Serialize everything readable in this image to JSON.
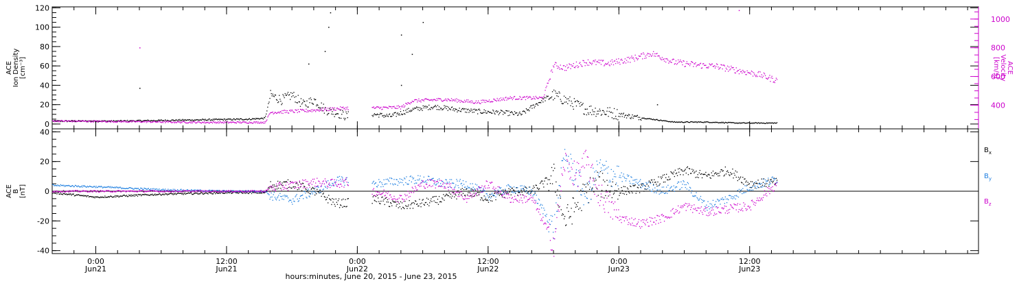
{
  "chart_data": {
    "type": "scatter",
    "xlabel": "hours:minutes, June 20, 2015 - June 23, 2015",
    "xlim": [
      "2015-06-20 20:00",
      "2015-06-24 09:00"
    ],
    "x_ticks": [
      {
        "time": "2015-06-21 00:00",
        "line1": "0:00",
        "line2": "Jun21"
      },
      {
        "time": "2015-06-21 12:00",
        "line1": "12:00",
        "line2": "Jun21"
      },
      {
        "time": "2015-06-22 00:00",
        "line1": "0:00",
        "line2": "Jun22"
      },
      {
        "time": "2015-06-22 12:00",
        "line1": "12:00",
        "line2": "Jun22"
      },
      {
        "time": "2015-06-23 00:00",
        "line1": "0:00",
        "line2": "Jun23"
      },
      {
        "time": "2015-06-23 12:00",
        "line1": "12:00",
        "line2": "Jun23"
      }
    ],
    "panels": [
      {
        "left_axis": {
          "label_lines": [
            "ACE",
            "Ion Density",
            "[cm⁻³]"
          ],
          "ylim": [
            -5,
            121
          ],
          "ticks": [
            0,
            20,
            40,
            60,
            80,
            100,
            120
          ],
          "tick_labels": [
            "0",
            "20",
            "40",
            "60",
            "80",
            "100",
            "120"
          ]
        },
        "right_axis": {
          "label_lines": [
            "ACE",
            "Velocity",
            "[km/s]"
          ],
          "ylim": [
            235,
            1085
          ],
          "ticks": [
            400,
            600,
            800,
            1000
          ],
          "tick_labels": [
            "400",
            "600",
            "800",
            "1000"
          ],
          "color": "#cc00cc"
        },
        "series": [
          {
            "color": "#000000",
            "axis": "left",
            "points": [
              [
                "2015-06-20 20:00",
                3
              ],
              [
                "2015-06-21 02:00",
                3
              ],
              [
                "2015-06-21 08:00",
                4
              ],
              [
                "2015-06-21 14:00",
                5
              ],
              [
                "2015-06-21 15:30",
                6
              ],
              [
                "2015-06-21 16:00",
                30
              ],
              [
                "2015-06-21 17:00",
                25
              ],
              [
                "2015-06-21 18:00",
                30
              ],
              [
                "2015-06-21 19:00",
                20
              ],
              [
                "2015-06-21 20:00",
                25
              ],
              [
                "2015-06-21 21:00",
                15
              ],
              [
                "2015-06-21 22:00",
                12
              ],
              [
                "2015-06-21 23:00",
                8
              ],
              [
                "2015-06-22 01:30",
                10
              ],
              [
                "2015-06-22 03:00",
                8
              ],
              [
                "2015-06-22 05:00",
                15
              ],
              [
                "2015-06-22 07:00",
                18
              ],
              [
                "2015-06-22 09:00",
                15
              ],
              [
                "2015-06-22 11:00",
                13
              ],
              [
                "2015-06-22 13:00",
                12
              ],
              [
                "2015-06-22 15:00",
                10
              ],
              [
                "2015-06-22 17:00",
                25
              ],
              [
                "2015-06-22 18:00",
                30
              ],
              [
                "2015-06-22 19:00",
                25
              ],
              [
                "2015-06-22 20:00",
                20
              ],
              [
                "2015-06-22 21:00",
                15
              ],
              [
                "2015-06-22 23:00",
                12
              ],
              [
                "2015-06-23 01:00",
                8
              ],
              [
                "2015-06-23 03:00",
                5
              ],
              [
                "2015-06-23 05:00",
                2
              ],
              [
                "2015-06-23 08:00",
                2
              ],
              [
                "2015-06-23 11:00",
                1
              ],
              [
                "2015-06-23 14:30",
                1
              ]
            ],
            "outliers": [
              [
                "2015-06-21 04:00",
                37
              ],
              [
                "2015-06-21 21:00",
                75
              ],
              [
                "2015-06-21 21:30",
                115
              ],
              [
                "2015-06-21 21:20",
                100
              ],
              [
                "2015-06-22 04:00",
                92
              ],
              [
                "2015-06-22 06:00",
                105
              ],
              [
                "2015-06-22 05:00",
                72
              ],
              [
                "2015-06-21 19:30",
                62
              ],
              [
                "2015-06-23 03:30",
                20
              ],
              [
                "2015-06-22 04:00",
                40
              ]
            ]
          },
          {
            "color": "#cc00cc",
            "axis": "right",
            "points": [
              [
                "2015-06-20 20:00",
                290
              ],
              [
                "2015-06-21 04:00",
                285
              ],
              [
                "2015-06-21 10:00",
                280
              ],
              [
                "2015-06-21 15:30",
                280
              ],
              [
                "2015-06-21 16:00",
                350
              ],
              [
                "2015-06-21 19:00",
                360
              ],
              [
                "2015-06-21 23:00",
                380
              ],
              [
                "2015-06-22 01:30",
                380
              ],
              [
                "2015-06-22 04:00",
                385
              ],
              [
                "2015-06-22 05:00",
                430
              ],
              [
                "2015-06-22 08:00",
                440
              ],
              [
                "2015-06-22 11:00",
                420
              ],
              [
                "2015-06-22 14:00",
                450
              ],
              [
                "2015-06-22 17:00",
                450
              ],
              [
                "2015-06-22 18:00",
                680
              ],
              [
                "2015-06-22 19:00",
                660
              ],
              [
                "2015-06-22 21:00",
                700
              ],
              [
                "2015-06-22 23:00",
                690
              ],
              [
                "2015-06-23 01:00",
                720
              ],
              [
                "2015-06-23 03:00",
                760
              ],
              [
                "2015-06-23 05:00",
                700
              ],
              [
                "2015-06-23 07:00",
                680
              ],
              [
                "2015-06-23 09:00",
                670
              ],
              [
                "2015-06-23 11:00",
                640
              ],
              [
                "2015-06-23 13:00",
                610
              ],
              [
                "2015-06-23 14:30",
                570
              ]
            ],
            "outliers": [
              [
                "2015-06-21 04:00",
                800
              ],
              [
                "2015-06-23 11:00",
                1060
              ]
            ]
          }
        ]
      },
      {
        "left_axis": {
          "label_lines": [
            "ACE",
            "B",
            "[nT]"
          ],
          "ylim": [
            -42,
            42
          ],
          "ticks": [
            -40,
            -20,
            0,
            20,
            40
          ],
          "tick_labels": [
            "-40",
            "-20",
            "0",
            "20",
            "40"
          ]
        },
        "zero_line": true,
        "series": [
          {
            "name": "Bx",
            "color": "#000000",
            "points": [
              [
                "2015-06-20 20:00",
                -1
              ],
              [
                "2015-06-21 00:00",
                -4
              ],
              [
                "2015-06-21 06:00",
                -2
              ],
              [
                "2015-06-21 12:00",
                -1
              ],
              [
                "2015-06-21 15:30",
                -1
              ],
              [
                "2015-06-21 16:00",
                4
              ],
              [
                "2015-06-21 18:00",
                5
              ],
              [
                "2015-06-21 20:00",
                0
              ],
              [
                "2015-06-21 22:00",
                -8
              ],
              [
                "2015-06-21 23:00",
                -8
              ],
              [
                "2015-06-22 01:30",
                -5
              ],
              [
                "2015-06-22 04:00",
                -10
              ],
              [
                "2015-06-22 06:00",
                -8
              ],
              [
                "2015-06-22 08:00",
                -5
              ],
              [
                "2015-06-22 10:00",
                0
              ],
              [
                "2015-06-22 12:00",
                -5
              ],
              [
                "2015-06-22 14:00",
                0
              ],
              [
                "2015-06-22 16:00",
                0
              ],
              [
                "2015-06-22 18:00",
                10
              ],
              [
                "2015-06-22 19:00",
                -20
              ],
              [
                "2015-06-22 20:00",
                -10
              ],
              [
                "2015-06-22 21:00",
                0
              ],
              [
                "2015-06-22 22:00",
                5
              ],
              [
                "2015-06-23 00:00",
                0
              ],
              [
                "2015-06-23 02:00",
                2
              ],
              [
                "2015-06-23 04:00",
                8
              ],
              [
                "2015-06-23 06:00",
                14
              ],
              [
                "2015-06-23 08:00",
                10
              ],
              [
                "2015-06-23 10:00",
                14
              ],
              [
                "2015-06-23 12:00",
                5
              ],
              [
                "2015-06-23 14:30",
                6
              ]
            ]
          },
          {
            "name": "By",
            "color": "#1f7fe0",
            "points": [
              [
                "2015-06-20 20:00",
                4
              ],
              [
                "2015-06-21 00:00",
                3
              ],
              [
                "2015-06-21 06:00",
                1
              ],
              [
                "2015-06-21 12:00",
                0
              ],
              [
                "2015-06-21 15:30",
                0
              ],
              [
                "2015-06-21 16:00",
                -3
              ],
              [
                "2015-06-21 18:00",
                -6
              ],
              [
                "2015-06-21 20:00",
                0
              ],
              [
                "2015-06-21 22:00",
                7
              ],
              [
                "2015-06-21 23:00",
                7
              ],
              [
                "2015-06-22 01:30",
                5
              ],
              [
                "2015-06-22 04:00",
                7
              ],
              [
                "2015-06-22 06:00",
                8
              ],
              [
                "2015-06-22 08:00",
                5
              ],
              [
                "2015-06-22 10:00",
                5
              ],
              [
                "2015-06-22 12:00",
                -3
              ],
              [
                "2015-06-22 14:00",
                2
              ],
              [
                "2015-06-22 16:00",
                0
              ],
              [
                "2015-06-22 18:00",
                -25
              ],
              [
                "2015-06-22 19:00",
                25
              ],
              [
                "2015-06-22 20:00",
                10
              ],
              [
                "2015-06-22 21:00",
                -5
              ],
              [
                "2015-06-22 22:00",
                15
              ],
              [
                "2015-06-23 00:00",
                10
              ],
              [
                "2015-06-23 02:00",
                5
              ],
              [
                "2015-06-23 04:00",
                0
              ],
              [
                "2015-06-23 06:00",
                5
              ],
              [
                "2015-06-23 08:00",
                -10
              ],
              [
                "2015-06-23 10:00",
                -5
              ],
              [
                "2015-06-23 12:00",
                3
              ],
              [
                "2015-06-23 14:30",
                8
              ]
            ]
          },
          {
            "name": "Bz",
            "color": "#cc00cc",
            "points": [
              [
                "2015-06-20 20:00",
                0
              ],
              [
                "2015-06-21 00:00",
                0
              ],
              [
                "2015-06-21 06:00",
                0
              ],
              [
                "2015-06-21 12:00",
                0
              ],
              [
                "2015-06-21 15:30",
                0
              ],
              [
                "2015-06-21 16:00",
                2
              ],
              [
                "2015-06-21 18:00",
                4
              ],
              [
                "2015-06-21 20:00",
                6
              ],
              [
                "2015-06-21 22:00",
                5
              ],
              [
                "2015-06-21 23:00",
                6
              ],
              [
                "2015-06-22 01:30",
                0
              ],
              [
                "2015-06-22 04:00",
                -5
              ],
              [
                "2015-06-22 06:00",
                5
              ],
              [
                "2015-06-22 08:00",
                5
              ],
              [
                "2015-06-22 10:00",
                -5
              ],
              [
                "2015-06-22 12:00",
                5
              ],
              [
                "2015-06-22 14:00",
                -5
              ],
              [
                "2015-06-22 16:00",
                -5
              ],
              [
                "2015-06-22 18:00",
                -35
              ],
              [
                "2015-06-22 19:00",
                20
              ],
              [
                "2015-06-22 20:00",
                10
              ],
              [
                "2015-06-22 21:00",
                20
              ],
              [
                "2015-06-22 22:00",
                0
              ],
              [
                "2015-06-23 00:00",
                -18
              ],
              [
                "2015-06-23 02:00",
                -22
              ],
              [
                "2015-06-23 04:00",
                -18
              ],
              [
                "2015-06-23 06:00",
                -10
              ],
              [
                "2015-06-23 08:00",
                -14
              ],
              [
                "2015-06-23 10:00",
                -12
              ],
              [
                "2015-06-23 12:00",
                -10
              ],
              [
                "2015-06-23 14:30",
                5
              ]
            ]
          }
        ],
        "legend": [
          {
            "base": "B",
            "sub": "x",
            "color": "#000000"
          },
          {
            "base": "B",
            "sub": "y",
            "color": "#1f7fe0"
          },
          {
            "base": "B",
            "sub": "z",
            "color": "#cc00cc"
          }
        ]
      }
    ],
    "data_gaps": [
      [
        "2015-06-21 23:10",
        "2015-06-22 01:20"
      ]
    ]
  }
}
